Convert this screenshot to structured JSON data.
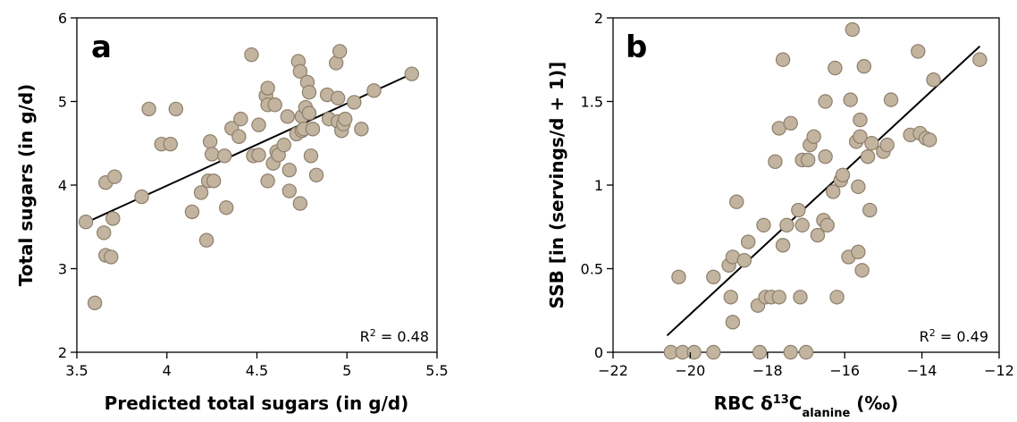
{
  "chart_data": [
    {
      "type": "scatter",
      "panel_label": "a",
      "xlabel": "Predicted total sugars (in g/d)",
      "ylabel": "Total sugars (in g/d)",
      "xlim": [
        3.5,
        5.5
      ],
      "ylim": [
        2,
        6
      ],
      "xticks": [
        3.5,
        4,
        4.5,
        5,
        5.5
      ],
      "yticks": [
        2,
        3,
        4,
        5,
        6
      ],
      "xtick_labels": [
        "3.5",
        "4",
        "4.5",
        "5",
        "5.5"
      ],
      "ytick_labels": [
        "2",
        "3",
        "4",
        "5",
        "6"
      ],
      "r2_label": "R",
      "r2_sup": "2",
      "r2_value": " = 0.48",
      "fit_line": [
        [
          3.55,
          3.55
        ],
        [
          5.36,
          5.33
        ]
      ],
      "points": [
        [
          3.55,
          3.56
        ],
        [
          3.6,
          2.59
        ],
        [
          3.65,
          3.43
        ],
        [
          3.66,
          4.03
        ],
        [
          3.66,
          3.16
        ],
        [
          3.69,
          3.14
        ],
        [
          3.7,
          3.6
        ],
        [
          3.71,
          4.1
        ],
        [
          3.86,
          3.86
        ],
        [
          3.9,
          4.91
        ],
        [
          3.97,
          4.49
        ],
        [
          4.02,
          4.49
        ],
        [
          4.05,
          4.91
        ],
        [
          4.14,
          3.68
        ],
        [
          4.19,
          3.91
        ],
        [
          4.22,
          3.34
        ],
        [
          4.23,
          4.05
        ],
        [
          4.24,
          4.52
        ],
        [
          4.25,
          4.37
        ],
        [
          4.26,
          4.05
        ],
        [
          4.32,
          4.35
        ],
        [
          4.33,
          3.73
        ],
        [
          4.36,
          4.68
        ],
        [
          4.4,
          4.58
        ],
        [
          4.41,
          4.79
        ],
        [
          4.47,
          5.56
        ],
        [
          4.48,
          4.35
        ],
        [
          4.51,
          4.72
        ],
        [
          4.51,
          4.36
        ],
        [
          4.55,
          5.07
        ],
        [
          4.56,
          5.16
        ],
        [
          4.56,
          4.96
        ],
        [
          4.56,
          4.05
        ],
        [
          4.59,
          4.26
        ],
        [
          4.6,
          4.96
        ],
        [
          4.61,
          4.4
        ],
        [
          4.62,
          4.36
        ],
        [
          4.65,
          4.48
        ],
        [
          4.67,
          4.82
        ],
        [
          4.68,
          4.18
        ],
        [
          4.68,
          3.93
        ],
        [
          4.72,
          4.61
        ],
        [
          4.73,
          5.48
        ],
        [
          4.74,
          5.36
        ],
        [
          4.74,
          3.78
        ],
        [
          4.75,
          4.65
        ],
        [
          4.75,
          4.82
        ],
        [
          4.76,
          4.67
        ],
        [
          4.77,
          4.93
        ],
        [
          4.78,
          5.23
        ],
        [
          4.79,
          4.86
        ],
        [
          4.79,
          5.11
        ],
        [
          4.8,
          4.35
        ],
        [
          4.81,
          4.67
        ],
        [
          4.83,
          4.12
        ],
        [
          4.89,
          5.08
        ],
        [
          4.9,
          4.79
        ],
        [
          4.94,
          5.46
        ],
        [
          4.95,
          5.04
        ],
        [
          4.95,
          4.76
        ],
        [
          4.96,
          5.6
        ],
        [
          4.97,
          4.65
        ],
        [
          4.98,
          4.73
        ],
        [
          4.99,
          4.79
        ],
        [
          5.04,
          4.99
        ],
        [
          5.08,
          4.67
        ],
        [
          5.15,
          5.13
        ],
        [
          5.36,
          5.33
        ]
      ]
    },
    {
      "type": "scatter",
      "panel_label": "b",
      "xlabel_main": "RBC δ",
      "xlabel_sup": "13",
      "xlabel_c": "C",
      "xlabel_sub": "alanine",
      "xlabel_unit": " (‰)",
      "ylabel": "SSB [in (servings/d + 1)]",
      "xlim": [
        -22,
        -12
      ],
      "ylim": [
        0,
        2
      ],
      "xticks": [
        -22,
        -20,
        -18,
        -16,
        -14,
        -12
      ],
      "yticks": [
        0,
        0.5,
        1,
        1.5,
        2
      ],
      "xtick_labels": [
        "−22",
        "−20",
        "−18",
        "−16",
        "−14",
        "−12"
      ],
      "ytick_labels": [
        "0",
        "0.5",
        "1",
        "1.5",
        "2"
      ],
      "r2_label": "R",
      "r2_sup": "2",
      "r2_value": " = 0.49",
      "fit_line": [
        [
          -20.6,
          0.1
        ],
        [
          -12.5,
          1.83
        ]
      ],
      "points": [
        [
          -20.5,
          0.0
        ],
        [
          -20.3,
          0.45
        ],
        [
          -20.2,
          0.0
        ],
        [
          -19.9,
          0.0
        ],
        [
          -19.4,
          0.45
        ],
        [
          -19.4,
          0.0
        ],
        [
          -19.0,
          0.52
        ],
        [
          -18.95,
          0.33
        ],
        [
          -18.9,
          0.57
        ],
        [
          -18.9,
          0.18
        ],
        [
          -18.8,
          0.9
        ],
        [
          -18.6,
          0.55
        ],
        [
          -18.5,
          0.66
        ],
        [
          -18.25,
          0.28
        ],
        [
          -18.2,
          0.0
        ],
        [
          -18.1,
          0.76
        ],
        [
          -18.05,
          0.33
        ],
        [
          -17.9,
          0.33
        ],
        [
          -17.8,
          1.14
        ],
        [
          -17.7,
          0.33
        ],
        [
          -17.7,
          1.34
        ],
        [
          -17.6,
          1.75
        ],
        [
          -17.6,
          0.64
        ],
        [
          -17.5,
          0.76
        ],
        [
          -17.4,
          0.0
        ],
        [
          -17.4,
          1.37
        ],
        [
          -17.2,
          0.85
        ],
        [
          -17.15,
          0.33
        ],
        [
          -17.1,
          0.76
        ],
        [
          -17.1,
          1.15
        ],
        [
          -17.0,
          0.0
        ],
        [
          -16.95,
          1.15
        ],
        [
          -16.9,
          1.24
        ],
        [
          -16.8,
          1.29
        ],
        [
          -16.7,
          0.7
        ],
        [
          -16.55,
          0.79
        ],
        [
          -16.5,
          1.17
        ],
        [
          -16.5,
          1.5
        ],
        [
          -16.45,
          0.76
        ],
        [
          -16.3,
          0.96
        ],
        [
          -16.25,
          1.7
        ],
        [
          -16.2,
          0.33
        ],
        [
          -16.1,
          1.03
        ],
        [
          -16.05,
          1.06
        ],
        [
          -15.9,
          0.57
        ],
        [
          -15.85,
          1.51
        ],
        [
          -15.8,
          1.93
        ],
        [
          -15.7,
          1.26
        ],
        [
          -15.65,
          0.99
        ],
        [
          -15.65,
          0.6
        ],
        [
          -15.6,
          1.29
        ],
        [
          -15.6,
          1.39
        ],
        [
          -15.55,
          0.49
        ],
        [
          -15.5,
          1.71
        ],
        [
          -15.4,
          1.17
        ],
        [
          -15.35,
          0.85
        ],
        [
          -15.3,
          1.25
        ],
        [
          -15.0,
          1.2
        ],
        [
          -14.9,
          1.24
        ],
        [
          -14.8,
          1.51
        ],
        [
          -14.3,
          1.3
        ],
        [
          -14.1,
          1.8
        ],
        [
          -14.05,
          1.31
        ],
        [
          -13.9,
          1.28
        ],
        [
          -13.8,
          1.27
        ],
        [
          -13.7,
          1.63
        ],
        [
          -12.5,
          1.75
        ]
      ]
    }
  ]
}
